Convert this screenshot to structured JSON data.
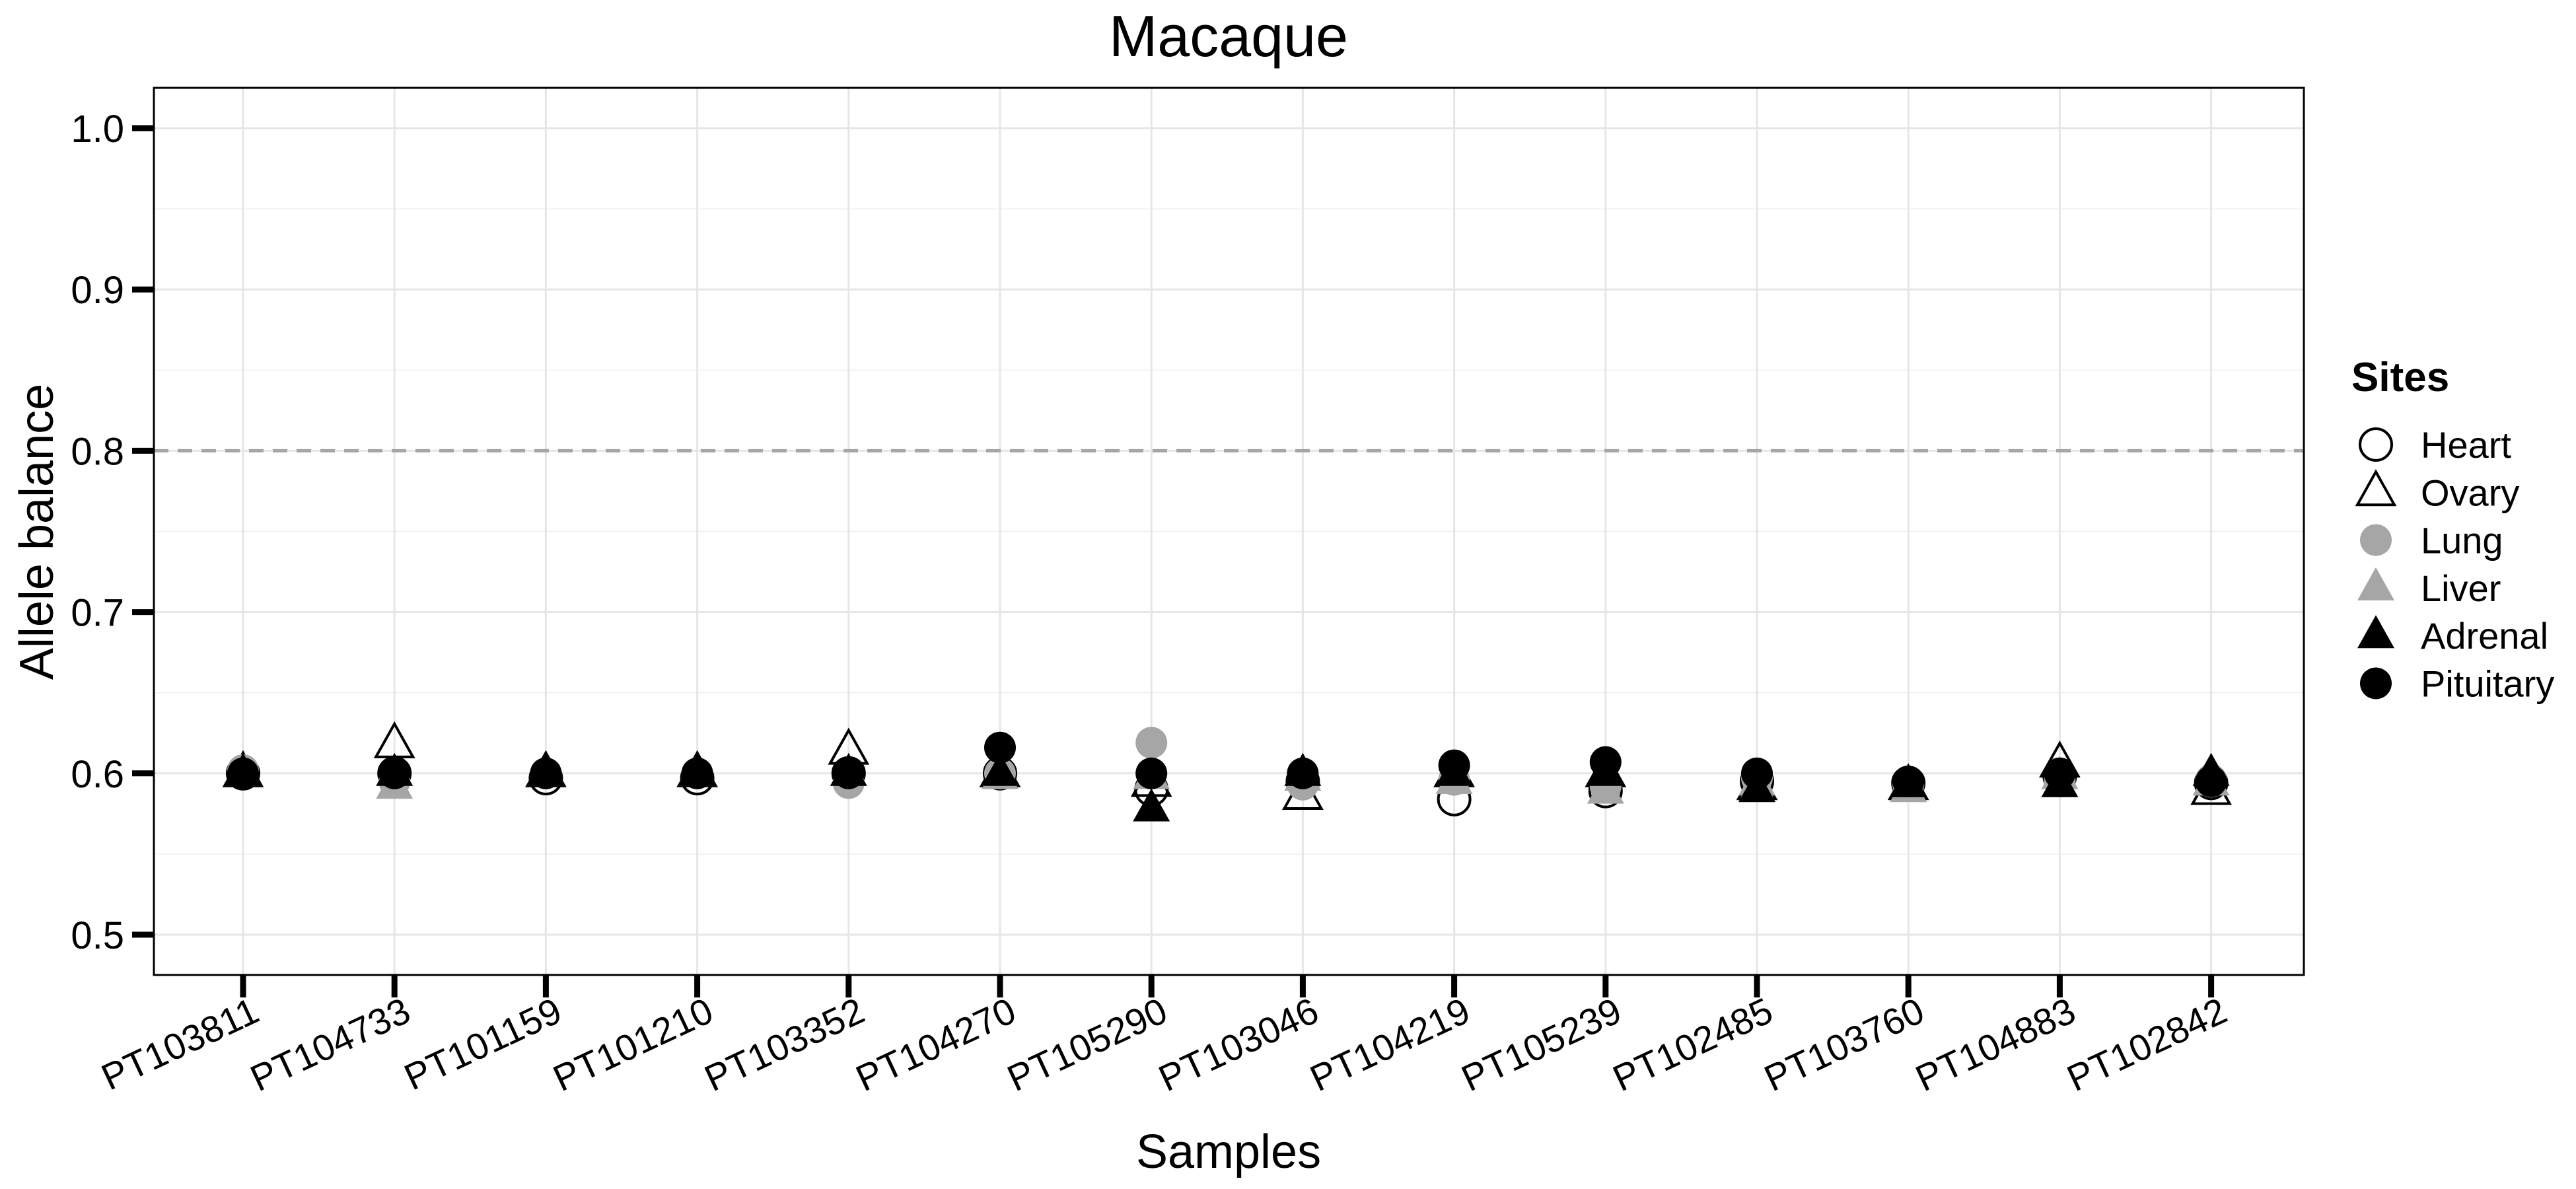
{
  "chart_data": {
    "type": "scatter",
    "title": "Macaque",
    "xlabel": "Samples",
    "ylabel": "Allele balance",
    "ylim": [
      0.475,
      1.025
    ],
    "yticks": [
      0.5,
      0.6,
      0.7,
      0.8,
      0.9,
      1.0
    ],
    "ytick_labels": [
      "0.5",
      "0.6",
      "0.7",
      "0.8",
      "0.9",
      "1.0"
    ],
    "grid": true,
    "reference_line": {
      "y": 0.8,
      "style": "dashed",
      "color": "#a6a6a6"
    },
    "categories": [
      "PT103811",
      "PT104733",
      "PT101159",
      "PT101210",
      "PT103352",
      "PT104270",
      "PT105290",
      "PT103046",
      "PT104219",
      "PT105239",
      "PT102485",
      "PT103760",
      "PT104883",
      "PT102842"
    ],
    "legend": {
      "title": "Sites",
      "placement": "right"
    },
    "series": [
      {
        "name": "Heart",
        "shape": "circle",
        "fill": "none",
        "stroke": "#000000",
        "values": [
          0.6,
          0.6,
          0.597,
          0.597,
          0.6,
          0.6,
          0.59,
          0.595,
          0.584,
          0.589,
          0.595,
          0.594,
          0.598,
          0.594
        ]
      },
      {
        "name": "Ovary",
        "shape": "triangle",
        "fill": "none",
        "stroke": "#000000",
        "values": [
          0.6,
          0.618,
          0.6,
          0.6,
          0.614,
          0.6,
          0.594,
          0.586,
          0.6,
          0.6,
          0.592,
          0.592,
          0.606,
          0.589
        ]
      },
      {
        "name": "Lung",
        "shape": "circle",
        "fill": "#a6a6a6",
        "stroke": "none",
        "values": [
          0.602,
          0.595,
          0.6,
          0.6,
          0.594,
          0.6,
          0.619,
          0.593,
          0.596,
          0.592,
          0.597,
          0.593,
          0.595,
          0.596
        ]
      },
      {
        "name": "Liver",
        "shape": "triangle",
        "fill": "#a6a6a6",
        "stroke": "none",
        "values": [
          0.6,
          0.592,
          0.6,
          0.6,
          0.6,
          0.598,
          0.598,
          0.597,
          0.595,
          0.589,
          0.594,
          0.59,
          0.598,
          0.594
        ]
      },
      {
        "name": "Adrenal",
        "shape": "triangle",
        "fill": "#000000",
        "stroke": "none",
        "values": [
          0.6,
          0.6,
          0.6,
          0.6,
          0.6,
          0.6,
          0.578,
          0.6,
          0.6,
          0.6,
          0.59,
          0.593,
          0.593,
          0.6
        ]
      },
      {
        "name": "Pituitary",
        "shape": "circle",
        "fill": "#000000",
        "stroke": "none",
        "values": [
          0.6,
          0.6,
          0.6,
          0.6,
          0.6,
          0.616,
          0.6,
          0.6,
          0.605,
          0.607,
          0.6,
          0.595,
          0.6,
          0.595
        ]
      }
    ]
  }
}
